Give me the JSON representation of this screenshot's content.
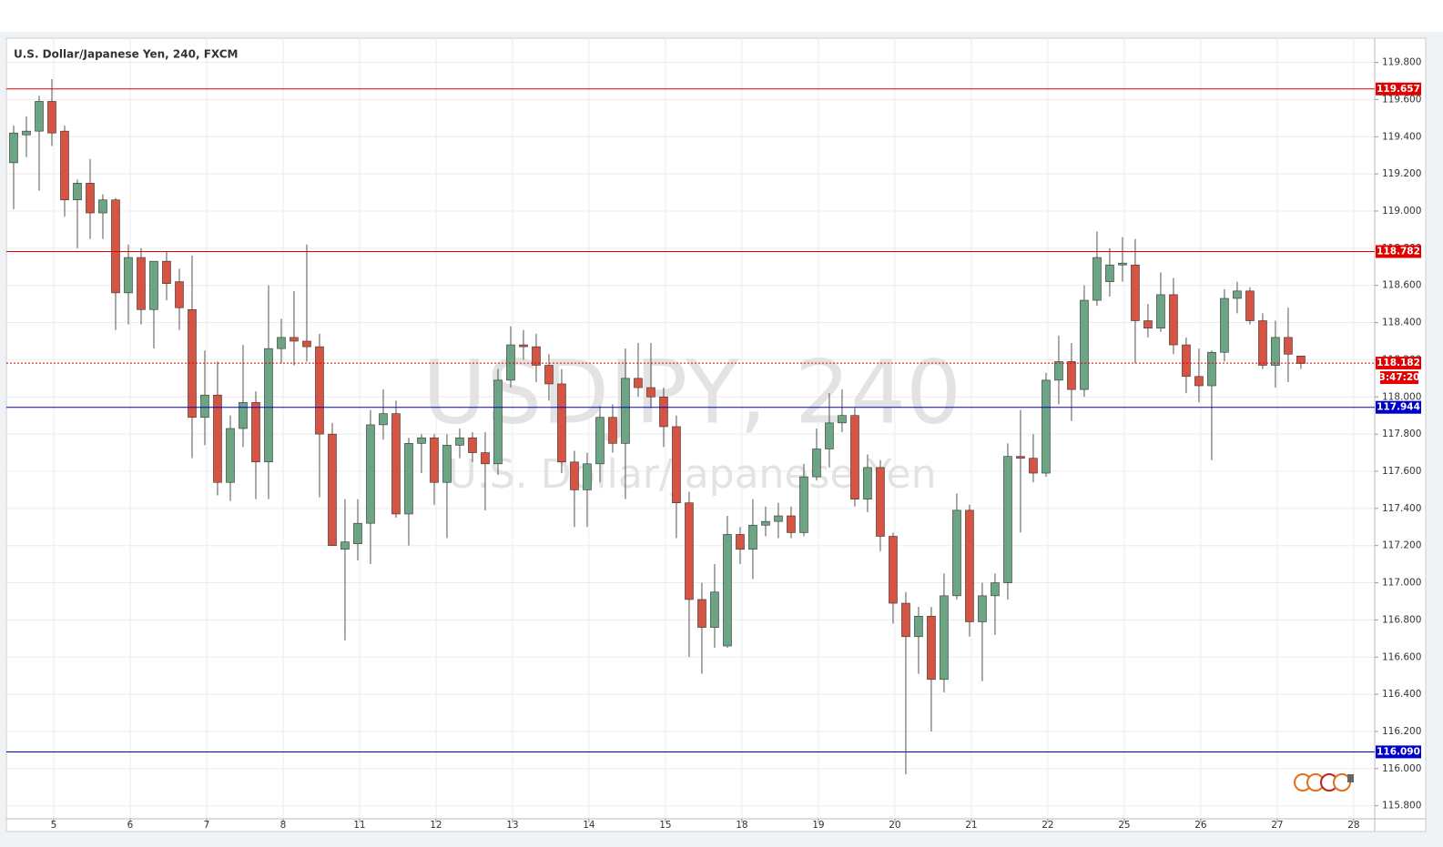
{
  "chart_data": {
    "type": "candlestick",
    "title": "U.S. Dollar/Japanese Yen, 240, FXCM",
    "watermark": "USDJPY, 240",
    "watermark_subtitle": "U.S. Dollar/Japanese Yen",
    "up_color": "#6ba583",
    "down_color": "#d75442",
    "open": [
      119.26,
      119.41,
      119.43,
      119.59,
      119.43,
      119.06,
      119.15,
      118.99,
      119.06,
      118.56,
      118.75,
      118.47,
      118.73,
      118.62,
      118.47,
      117.89,
      118.01,
      117.54,
      117.83,
      117.97,
      117.65,
      118.26,
      118.32,
      118.3,
      118.27,
      117.8,
      117.18,
      117.21,
      117.32,
      117.85,
      117.91,
      117.37,
      117.75,
      117.78,
      117.54,
      117.74,
      117.78,
      117.7,
      117.64,
      118.09,
      118.28,
      118.27,
      118.17,
      118.07,
      117.65,
      117.5,
      117.64,
      117.89,
      117.75,
      118.1,
      118.05,
      118.0,
      117.84,
      117.43,
      116.91,
      116.76,
      116.66,
      117.26,
      117.18,
      117.31,
      117.33,
      117.36,
      117.27,
      117.57,
      117.72,
      117.86,
      117.9,
      117.45,
      117.62,
      117.25,
      116.89,
      116.71,
      116.82,
      116.48,
      116.93,
      117.39,
      116.79,
      116.93,
      117.0,
      117.68,
      117.67,
      117.59,
      118.09,
      118.19,
      118.04,
      118.52,
      118.62,
      118.71,
      118.71,
      118.41,
      118.37,
      118.55,
      118.28,
      118.11,
      118.06,
      118.24,
      118.53,
      118.57,
      118.41,
      118.17,
      118.32,
      118.22
    ],
    "high": [
      119.46,
      119.51,
      119.62,
      119.71,
      119.46,
      119.17,
      119.28,
      119.09,
      119.07,
      118.82,
      118.8,
      118.73,
      118.78,
      118.69,
      118.76,
      118.25,
      118.19,
      117.9,
      118.28,
      118.03,
      118.6,
      118.42,
      118.57,
      118.82,
      118.34,
      117.86,
      117.45,
      117.45,
      117.93,
      118.04,
      117.98,
      117.78,
      117.8,
      117.8,
      117.8,
      117.83,
      117.81,
      117.81,
      118.15,
      118.38,
      118.36,
      118.34,
      118.23,
      118.15,
      117.71,
      117.7,
      117.95,
      117.96,
      118.26,
      118.29,
      118.29,
      118.05,
      117.9,
      117.49,
      117.0,
      117.1,
      117.36,
      117.3,
      117.45,
      117.41,
      117.43,
      117.41,
      117.64,
      117.83,
      118.02,
      118.04,
      117.94,
      117.69,
      117.66,
      117.27,
      116.95,
      116.87,
      116.87,
      117.05,
      117.48,
      117.42,
      117.0,
      117.05,
      117.75,
      117.93,
      117.8,
      118.13,
      118.33,
      118.29,
      118.6,
      118.89,
      118.8,
      118.86,
      118.85,
      118.5,
      118.67,
      118.64,
      118.32,
      118.26,
      118.25,
      118.58,
      118.62,
      118.59,
      118.45,
      118.41,
      118.48,
      118.22
    ],
    "low": [
      119.01,
      119.29,
      119.11,
      119.35,
      118.97,
      118.8,
      118.85,
      118.85,
      118.36,
      118.39,
      118.39,
      118.26,
      118.52,
      118.36,
      117.67,
      117.74,
      117.47,
      117.44,
      117.73,
      117.45,
      117.45,
      118.18,
      118.17,
      118.19,
      117.46,
      117.2,
      116.69,
      117.12,
      117.1,
      117.77,
      117.35,
      117.2,
      117.59,
      117.42,
      117.24,
      117.67,
      117.65,
      117.39,
      117.58,
      118.05,
      118.2,
      118.08,
      117.98,
      117.59,
      117.3,
      117.3,
      117.54,
      117.7,
      117.45,
      118.0,
      117.94,
      117.73,
      117.24,
      116.6,
      116.51,
      116.65,
      116.65,
      117.1,
      117.02,
      117.25,
      117.24,
      117.24,
      117.25,
      117.55,
      117.62,
      117.81,
      117.41,
      117.38,
      117.17,
      116.78,
      115.97,
      116.51,
      116.2,
      116.41,
      116.91,
      116.71,
      116.47,
      116.72,
      116.91,
      117.27,
      117.54,
      117.57,
      117.96,
      117.87,
      118.0,
      118.49,
      118.54,
      118.62,
      118.18,
      118.32,
      118.35,
      118.23,
      118.02,
      117.97,
      117.66,
      118.19,
      118.45,
      118.39,
      118.15,
      118.05,
      118.08,
      118.15
    ],
    "close": [
      119.42,
      119.43,
      119.59,
      119.42,
      119.06,
      119.15,
      118.99,
      119.06,
      118.56,
      118.75,
      118.47,
      118.73,
      118.61,
      118.48,
      117.89,
      118.01,
      117.54,
      117.83,
      117.97,
      117.65,
      118.26,
      118.32,
      118.3,
      118.27,
      117.8,
      117.2,
      117.22,
      117.32,
      117.85,
      117.91,
      117.37,
      117.75,
      117.78,
      117.54,
      117.74,
      117.78,
      117.7,
      117.64,
      118.09,
      118.28,
      118.27,
      118.17,
      118.07,
      117.65,
      117.5,
      117.64,
      117.89,
      117.75,
      118.1,
      118.05,
      118.0,
      117.84,
      117.43,
      116.91,
      116.76,
      116.95,
      117.26,
      117.18,
      117.31,
      117.33,
      117.36,
      117.27,
      117.57,
      117.72,
      117.86,
      117.9,
      117.45,
      117.62,
      117.25,
      116.89,
      116.71,
      116.82,
      116.48,
      116.93,
      117.39,
      116.79,
      116.93,
      117.0,
      117.68,
      117.67,
      117.59,
      118.09,
      118.19,
      118.04,
      118.52,
      118.75,
      118.71,
      118.72,
      118.41,
      118.37,
      118.55,
      118.28,
      118.11,
      118.06,
      118.24,
      118.53,
      118.57,
      118.41,
      118.17,
      118.32,
      118.23,
      118.18
    ],
    "xlim": [
      -0.57,
      106.79
    ],
    "xticks": [
      {
        "value": 3.14,
        "label": "5"
      },
      {
        "value": 9.14,
        "label": "6"
      },
      {
        "value": 15.14,
        "label": "7"
      },
      {
        "value": 21.14,
        "label": "8"
      },
      {
        "value": 27.14,
        "label": "11"
      },
      {
        "value": 33.14,
        "label": "12"
      },
      {
        "value": 39.14,
        "label": "13"
      },
      {
        "value": 45.14,
        "label": "14"
      },
      {
        "value": 51.14,
        "label": "15"
      },
      {
        "value": 57.14,
        "label": "18"
      },
      {
        "value": 63.14,
        "label": "19"
      },
      {
        "value": 69.14,
        "label": "20"
      },
      {
        "value": 75.14,
        "label": "21"
      },
      {
        "value": 81.14,
        "label": "22"
      },
      {
        "value": 87.14,
        "label": "25"
      },
      {
        "value": 93.14,
        "label": "26"
      },
      {
        "value": 99.14,
        "label": "27"
      },
      {
        "value": 105.14,
        "label": "28"
      }
    ],
    "ylim": [
      115.73,
      119.93
    ],
    "yticks": [
      {
        "value": 115.8,
        "label": "115.800"
      },
      {
        "value": 116,
        "label": "116.000"
      },
      {
        "value": 116.2,
        "label": "116.200"
      },
      {
        "value": 116.4,
        "label": "116.400"
      },
      {
        "value": 116.6,
        "label": "116.600"
      },
      {
        "value": 116.8,
        "label": "116.800"
      },
      {
        "value": 117,
        "label": "117.000"
      },
      {
        "value": 117.2,
        "label": "117.200"
      },
      {
        "value": 117.4,
        "label": "117.400"
      },
      {
        "value": 117.6,
        "label": "117.600"
      },
      {
        "value": 117.8,
        "label": "117.800"
      },
      {
        "value": 118,
        "label": "118.000"
      },
      {
        "value": 118.2,
        "label": "118.200"
      },
      {
        "value": 118.4,
        "label": "118.400"
      },
      {
        "value": 118.6,
        "label": "118.600"
      },
      {
        "value": 118.8,
        "label": "118.800"
      },
      {
        "value": 119,
        "label": "119.000"
      },
      {
        "value": 119.2,
        "label": "119.200"
      },
      {
        "value": 119.4,
        "label": "119.400"
      },
      {
        "value": 119.6,
        "label": "119.600"
      },
      {
        "value": 119.8,
        "label": "119.800"
      }
    ],
    "grid": true,
    "levels": [
      {
        "value": 119.657,
        "color": "#e00000",
        "style": "solid"
      },
      {
        "value": 118.782,
        "color": "#e00000",
        "style": "solid"
      },
      {
        "value": 118.182,
        "color": "#e00000",
        "style": "dotted",
        "countdown": "3:47:20"
      },
      {
        "value": 117.944,
        "color": "#0000cc",
        "style": "solid"
      },
      {
        "value": {
          "value": 116.09,
          "label": "116.090"
        },
        "color": "#0000cc",
        "style": "solid"
      }
    ]
  }
}
